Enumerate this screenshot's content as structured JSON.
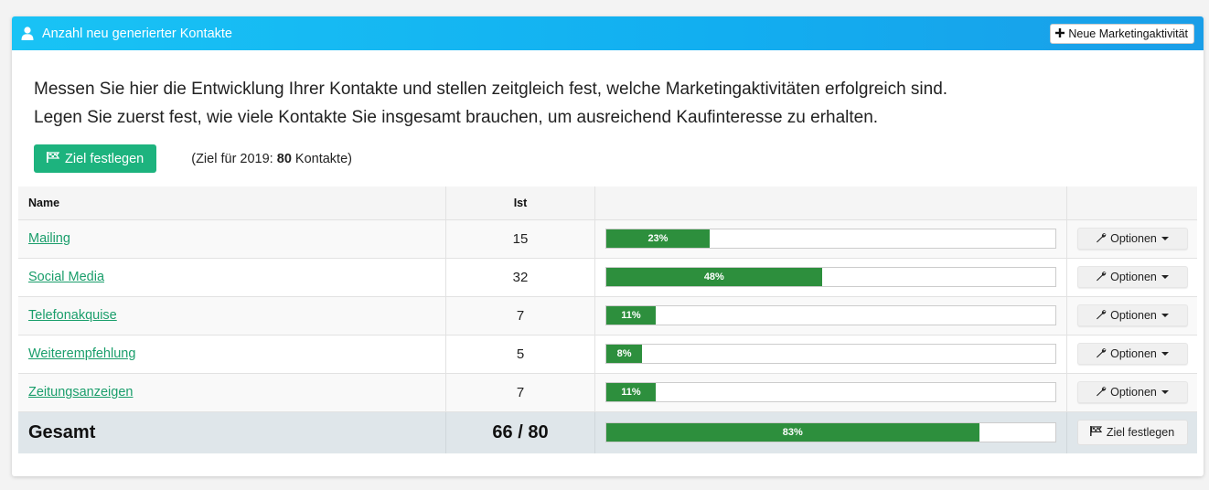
{
  "header": {
    "title": "Anzahl neu generierter Kontakte",
    "new_button": "Neue Marketingaktivität"
  },
  "intro": {
    "line1": "Messen Sie hier die Entwicklung Ihrer Kontakte und stellen zeitgleich fest, welche Marketingaktivitäten erfolgreich sind.",
    "line2": "Legen Sie zuerst fest, wie viele Kontakte Sie insgesamt brauchen, um ausreichend Kaufinteresse zu erhalten."
  },
  "goal": {
    "button": "Ziel festlegen",
    "prefix": "(Ziel für 2019: ",
    "value": "80",
    "suffix": " Kontakte)"
  },
  "table": {
    "headers": {
      "name": "Name",
      "ist": "Ist"
    },
    "rows": [
      {
        "name": "Mailing",
        "ist": "15",
        "percent": 23,
        "percent_label": "23%",
        "options": "Optionen"
      },
      {
        "name": "Social Media",
        "ist": "32",
        "percent": 48,
        "percent_label": "48%",
        "options": "Optionen"
      },
      {
        "name": "Telefonakquise",
        "ist": "7",
        "percent": 11,
        "percent_label": "11%",
        "options": "Optionen"
      },
      {
        "name": "Weiterempfehlung",
        "ist": "5",
        "percent": 8,
        "percent_label": "8%",
        "options": "Optionen"
      },
      {
        "name": "Zeitungsanzeigen",
        "ist": "7",
        "percent": 11,
        "percent_label": "11%",
        "options": "Optionen"
      }
    ],
    "total": {
      "label": "Gesamt",
      "value": "66 / 80",
      "percent": 83,
      "percent_label": "83%",
      "button": "Ziel festlegen"
    }
  },
  "colors": {
    "header_bg": "#12aef0",
    "progress": "#2d8f3d",
    "primary_button": "#1db37e",
    "link": "#1a9e6b"
  },
  "icons": {
    "header": "user-icon",
    "new": "plus-icon",
    "goal": "flag-icon",
    "options": "wrench-icon"
  }
}
